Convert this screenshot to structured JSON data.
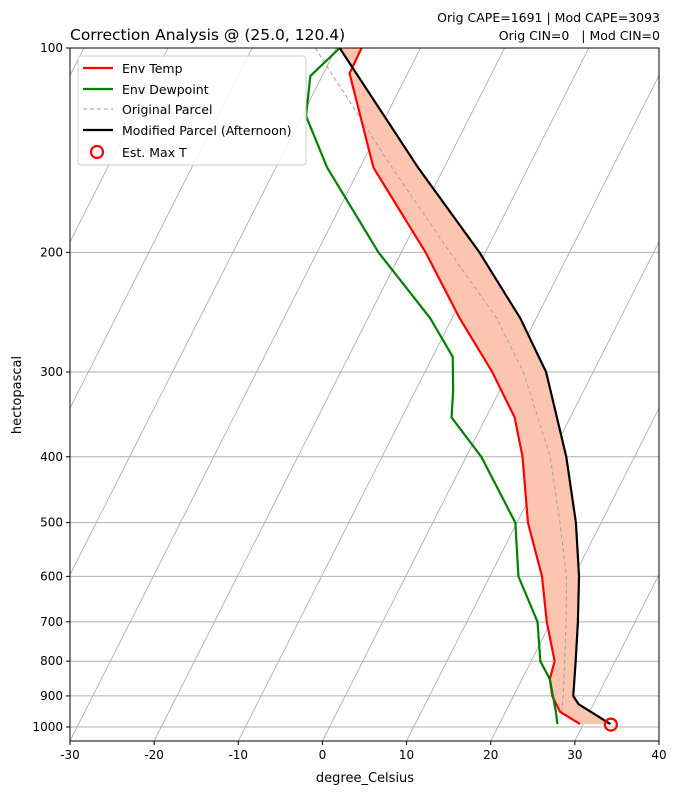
{
  "chart_data": {
    "type": "line",
    "subtype": "skew-t",
    "title": "Correction Analysis @ (25.0, 120.4)",
    "annotation": [
      "Orig CAPE=1691 | Mod CAPE=3093",
      "Orig CIN=0   | Mod CIN=0"
    ],
    "xlabel": "degree_Celsius",
    "ylabel": "hectopascal",
    "xlim": [
      -30,
      40
    ],
    "ylim": [
      1050,
      100
    ],
    "x_ticks": [
      "-30",
      "-20",
      "-10",
      "0",
      "10",
      "20",
      "30",
      "40"
    ],
    "y_ticks": [
      "100",
      "200",
      "300",
      "400",
      "500",
      "600",
      "700",
      "800",
      "900",
      "1000"
    ],
    "grid": true,
    "legend_position": "upper-left",
    "legend": [
      "Env Temp",
      "Env Dewpoint",
      "Original Parcel",
      "Modified Parcel (Afternoon)",
      "Est. Max T"
    ],
    "colors": {
      "temp": "#ff0000",
      "dewpoint": "#008000",
      "orig_parcel": "#a0a0a0",
      "mod_parcel": "#000000",
      "max_t": "#ff0000",
      "cape_fill": "#fcc5b0",
      "grid": "#b0b0b0"
    },
    "series": [
      {
        "name": "Env Temp",
        "pressure": [
          990,
          950,
          900,
          850,
          800,
          700,
          600,
          500,
          400,
          350,
          300,
          250,
          200,
          150,
          109,
          100
        ],
        "temperature": [
          29.6,
          26.5,
          24.6,
          23.3,
          22.8,
          19.5,
          16.2,
          11.3,
          6.7,
          3.4,
          -2.0,
          -9.1,
          -17.1,
          -28.4,
          -36.9,
          -37.0
        ]
      },
      {
        "name": "Env Dewpoint",
        "pressure": [
          990,
          950,
          850,
          800,
          700,
          600,
          500,
          400,
          350,
          320,
          285,
          250,
          200,
          150,
          126,
          110,
          100
        ],
        "temperature": [
          26.9,
          26.0,
          23.3,
          21.1,
          18.4,
          13.4,
          9.8,
          1.8,
          -4.1,
          -5.5,
          -7.6,
          -12.6,
          -22.7,
          -33.9,
          -39.5,
          -41.4,
          -39.6
        ]
      },
      {
        "name": "Original Parcel",
        "pressure": [
          990,
          950,
          900,
          800,
          700,
          600,
          500,
          400,
          300,
          250,
          200,
          150,
          100
        ],
        "temperature": [
          29.6,
          26.7,
          25.9,
          24.0,
          21.8,
          19.1,
          15.1,
          10.0,
          1.7,
          -4.7,
          -14.2,
          -26.2,
          -42.5
        ]
      },
      {
        "name": "Modified Parcel (Afternoon)",
        "pressure": [
          990,
          925,
          900,
          800,
          700,
          600,
          500,
          400,
          300,
          250,
          200,
          150,
          100
        ],
        "temperature": [
          33.2,
          28.2,
          27.1,
          25.3,
          23.2,
          20.6,
          17.0,
          11.9,
          4.4,
          -1.9,
          -10.7,
          -23.1,
          -39.6
        ]
      }
    ],
    "est_max_t": {
      "pressure": 992,
      "temperature": 33.3
    }
  }
}
